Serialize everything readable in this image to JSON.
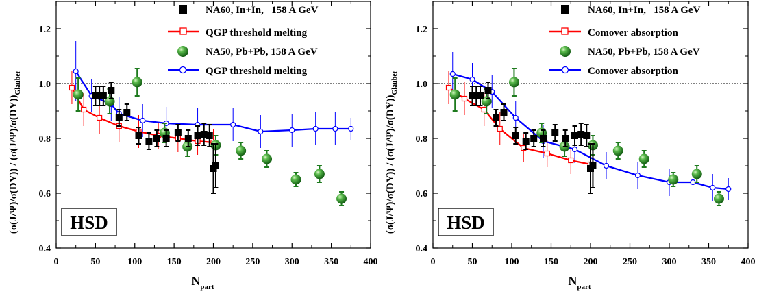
{
  "colors": {
    "na60": "#000000",
    "model_line_left": "#ff0000",
    "model_line_right": "#0000ff",
    "na50": "#228b22",
    "na50_errorbar": "#1e7a1e",
    "threshold": "#000000"
  },
  "icons": {
    "na60_marker": "black-square-marker",
    "na60_model": "open-square-marker",
    "na50_marker": "green-sphere-marker",
    "na50_model": "open-circle-marker"
  },
  "chart_data": [
    {
      "type": "scatter",
      "panel": "left",
      "badge": "HSD",
      "xlabel_main": "N",
      "xlabel_sub": "part",
      "ylabel_main": "(σ(J/Ψ)/σ(DY)) / (σ(J/Ψ)/σ(DY))",
      "ylabel_sub": "Glauber",
      "xlim": [
        0,
        400
      ],
      "ylim": [
        0.4,
        1.3
      ],
      "xticks": [
        0,
        50,
        100,
        150,
        200,
        250,
        300,
        350,
        400
      ],
      "xtick_labels": [
        "0",
        "50",
        "100",
        "150",
        "200",
        "250",
        "300",
        "350",
        "400"
      ],
      "yticks": [
        0.4,
        0.6,
        0.8,
        1.0,
        1.2
      ],
      "ytick_labels": [
        "0.4",
        "0.6",
        "0.8",
        "1.0",
        "1.2"
      ],
      "reference_line": 1.0,
      "legend_position": "top-right",
      "legend": [
        {
          "label": "NA60, In+In,   158 A GeV",
          "series": "na60"
        },
        {
          "label": "QGP threshold melting",
          "series": "na60_model"
        },
        {
          "label": "NA50, Pb+Pb, 158 A GeV",
          "series": "na50"
        },
        {
          "label": "QGP threshold melting",
          "series": "na50_model"
        }
      ],
      "series": {
        "na60": {
          "x": [
            50,
            55,
            60,
            70,
            80,
            90,
            105,
            118,
            128,
            140,
            155,
            168,
            180,
            188,
            195,
            200,
            203
          ],
          "y": [
            0.955,
            0.955,
            0.955,
            0.975,
            0.875,
            0.895,
            0.81,
            0.79,
            0.8,
            0.8,
            0.82,
            0.8,
            0.81,
            0.815,
            0.81,
            0.69,
            0.7
          ],
          "err": [
            0.035,
            0.035,
            0.035,
            0.03,
            0.03,
            0.03,
            0.03,
            0.03,
            0.03,
            0.03,
            0.03,
            0.03,
            0.035,
            0.04,
            0.04,
            0.09,
            0.08
          ]
        },
        "na60_model": {
          "x": [
            20,
            35,
            55,
            80,
            105,
            130,
            155,
            180,
            200
          ],
          "y": [
            0.985,
            0.905,
            0.875,
            0.845,
            0.825,
            0.81,
            0.8,
            0.79,
            0.785
          ],
          "err": [
            0.06,
            0.06,
            0.06,
            0.06,
            0.06,
            0.05,
            0.05,
            0.05,
            0.05
          ]
        },
        "na50": {
          "x": [
            28,
            68,
            103,
            138,
            167,
            203,
            235,
            268,
            305,
            335,
            363
          ],
          "y": [
            0.96,
            0.935,
            1.005,
            0.82,
            0.77,
            0.775,
            0.755,
            0.725,
            0.65,
            0.67,
            0.58
          ],
          "err": [
            0.06,
            0.045,
            0.05,
            0.035,
            0.035,
            0.035,
            0.03,
            0.03,
            0.025,
            0.03,
            0.025
          ]
        },
        "na50_model": {
          "x": [
            25,
            45,
            70,
            80,
            110,
            140,
            180,
            225,
            260,
            300,
            330,
            355,
            375
          ],
          "y": [
            1.045,
            0.955,
            0.925,
            0.89,
            0.865,
            0.855,
            0.85,
            0.85,
            0.825,
            0.83,
            0.835,
            0.835,
            0.835
          ],
          "err": [
            0.11,
            0.06,
            0.06,
            0.06,
            0.06,
            0.06,
            0.06,
            0.06,
            0.06,
            0.06,
            0.06,
            0.06,
            0.04
          ]
        }
      }
    },
    {
      "type": "scatter",
      "panel": "right",
      "badge": "HSD",
      "xlabel_main": "N",
      "xlabel_sub": "part",
      "ylabel_main": "(σ(J/Ψ)/σ(DY)) / (σ(J/Ψ)/σ(DY))",
      "ylabel_sub": "Glauber",
      "xlim": [
        0,
        400
      ],
      "ylim": [
        0.4,
        1.3
      ],
      "xticks": [
        0,
        50,
        100,
        150,
        200,
        250,
        300,
        350,
        400
      ],
      "xtick_labels": [
        "0",
        "50",
        "100",
        "150",
        "200",
        "250",
        "300",
        "350",
        "400"
      ],
      "yticks": [
        0.4,
        0.6,
        0.8,
        1.0,
        1.2
      ],
      "ytick_labels": [
        "0.4",
        "0.6",
        "0.8",
        "1.0",
        "1.2"
      ],
      "reference_line": 1.0,
      "legend_position": "top-right",
      "legend": [
        {
          "label": "NA60, In+In,   158 A GeV",
          "series": "na60"
        },
        {
          "label": "Comover absorption",
          "series": "na60_model"
        },
        {
          "label": "NA50, Pb+Pb, 158 A GeV",
          "series": "na50"
        },
        {
          "label": "Comover absorption",
          "series": "na50_model"
        }
      ],
      "series": {
        "na60": {
          "x": [
            50,
            55,
            60,
            70,
            80,
            90,
            105,
            118,
            128,
            140,
            155,
            168,
            180,
            188,
            195,
            200,
            203
          ],
          "y": [
            0.955,
            0.955,
            0.955,
            0.975,
            0.875,
            0.895,
            0.81,
            0.79,
            0.8,
            0.8,
            0.82,
            0.8,
            0.81,
            0.815,
            0.81,
            0.69,
            0.7
          ],
          "err": [
            0.035,
            0.035,
            0.035,
            0.03,
            0.03,
            0.03,
            0.03,
            0.03,
            0.03,
            0.03,
            0.03,
            0.03,
            0.035,
            0.04,
            0.04,
            0.09,
            0.08
          ]
        },
        "na60_model": {
          "x": [
            20,
            40,
            65,
            85,
            115,
            145,
            175,
            200
          ],
          "y": [
            0.985,
            0.945,
            0.905,
            0.835,
            0.765,
            0.745,
            0.72,
            0.705
          ],
          "err": [
            0.06,
            0.06,
            0.06,
            0.06,
            0.05,
            0.05,
            0.05,
            0.05
          ]
        },
        "na50": {
          "x": [
            28,
            68,
            103,
            138,
            167,
            203,
            235,
            268,
            305,
            335,
            363
          ],
          "y": [
            0.96,
            0.935,
            1.005,
            0.82,
            0.77,
            0.775,
            0.755,
            0.725,
            0.65,
            0.67,
            0.58
          ],
          "err": [
            0.06,
            0.045,
            0.05,
            0.035,
            0.035,
            0.035,
            0.03,
            0.03,
            0.025,
            0.03,
            0.025
          ]
        },
        "na50_model": {
          "x": [
            25,
            50,
            75,
            105,
            140,
            180,
            220,
            260,
            300,
            330,
            355,
            375
          ],
          "y": [
            1.035,
            1.015,
            0.97,
            0.875,
            0.79,
            0.76,
            0.7,
            0.665,
            0.64,
            0.64,
            0.62,
            0.615
          ],
          "err": [
            0.08,
            0.06,
            0.06,
            0.06,
            0.06,
            0.05,
            0.05,
            0.05,
            0.05,
            0.05,
            0.05,
            0.04
          ]
        }
      }
    }
  ]
}
